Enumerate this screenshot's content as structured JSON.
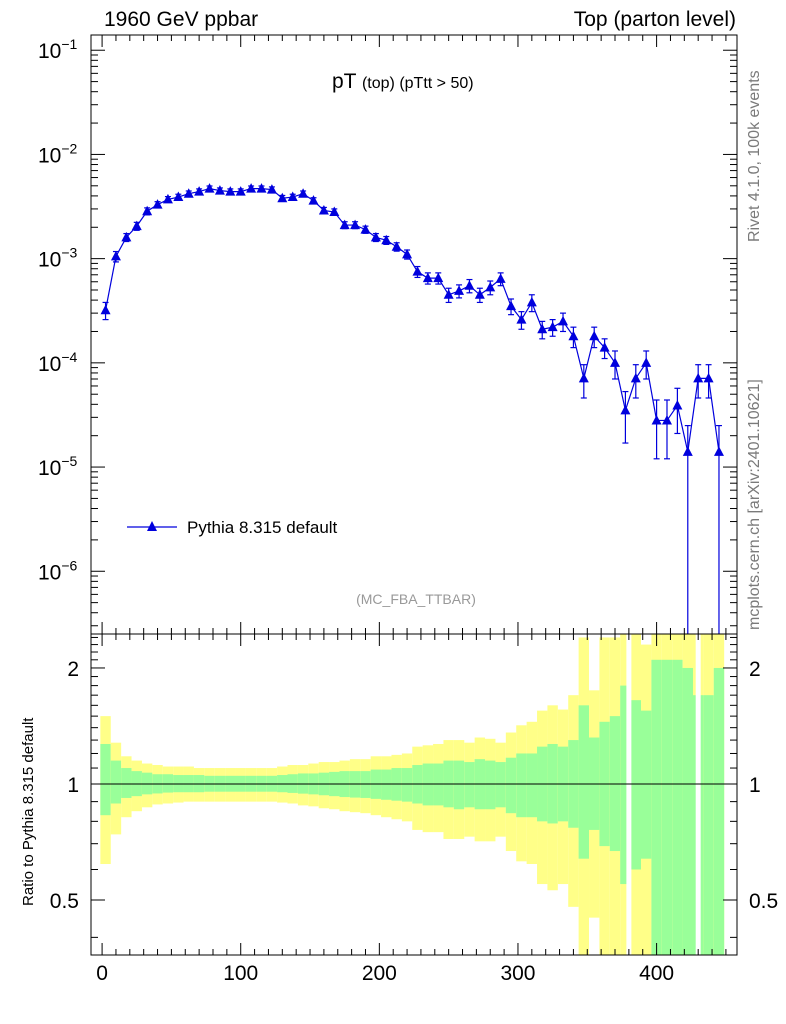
{
  "header": {
    "left": "1960 GeV ppbar",
    "right": "Top (parton level)"
  },
  "side_labels": {
    "rivet": "Rivet 4.1.0,  100k events",
    "site": "mcplots.cern.ch [arXiv:2401.10621]"
  },
  "colors": {
    "series": "#0000dd",
    "band_inner": "#99ff99",
    "band_outer": "#ffff88"
  },
  "chart_data": [
    {
      "type": "scatter",
      "title_main": "pT",
      "title_sub": "(top)",
      "title_cut": "(pTtt > 50)",
      "analysis_label": "(MC_FBA_TTBAR)",
      "yscale": "log",
      "xlim": [
        -8,
        458
      ],
      "ylim": [
        2.5e-07,
        0.14
      ],
      "yticks": [
        {
          "value": 1e-06,
          "base": "10",
          "exp": "−6"
        },
        {
          "value": 1e-05,
          "base": "10",
          "exp": "−5"
        },
        {
          "value": 0.0001,
          "base": "10",
          "exp": "−4"
        },
        {
          "value": 0.001,
          "base": "10",
          "exp": "−3"
        },
        {
          "value": 0.01,
          "base": "10",
          "exp": "−2"
        },
        {
          "value": 0.1,
          "base": "10",
          "exp": "−1"
        }
      ],
      "legend": {
        "position": "bottom-left",
        "label": "Pythia 8.315 default"
      },
      "series": [
        {
          "name": "Pythia 8.315 default",
          "x": [
            2.5,
            10,
            17.5,
            25,
            32.5,
            40,
            47.5,
            55,
            62.5,
            70,
            77.5,
            85,
            92.5,
            100,
            107.5,
            115,
            122.5,
            130,
            137.5,
            145,
            152.5,
            160,
            167.5,
            175,
            182.5,
            190,
            197.5,
            205,
            212.5,
            220,
            227.5,
            235,
            242.5,
            250,
            257.5,
            265,
            272.5,
            280,
            287.5,
            295,
            302.5,
            310,
            317.5,
            325,
            332.5,
            340,
            347.5,
            355,
            362.5,
            370,
            377.5,
            385,
            392.5,
            400,
            407.5,
            415,
            422.5,
            430,
            437.5,
            445
          ],
          "y": [
            0.00032,
            0.00105,
            0.0016,
            0.00205,
            0.00285,
            0.0033,
            0.0037,
            0.0039,
            0.0042,
            0.0044,
            0.0047,
            0.0045,
            0.0044,
            0.0044,
            0.0047,
            0.0047,
            0.0046,
            0.0038,
            0.0039,
            0.0042,
            0.0036,
            0.0029,
            0.0028,
            0.0021,
            0.0021,
            0.0019,
            0.0016,
            0.0015,
            0.0013,
            0.0011,
            0.00075,
            0.00065,
            0.00065,
            0.00045,
            0.00049,
            0.00055,
            0.00045,
            0.00053,
            0.00064,
            0.00035,
            0.00026,
            0.00038,
            0.00021,
            0.00022,
            0.00025,
            0.00018,
            7.1e-05,
            0.00018,
            0.00014,
            0.0001,
            3.5e-05,
            7.1e-05,
            0.0001,
            2.8e-05,
            2.8e-05,
            3.9e-05,
            1.4e-05,
            7.1e-05,
            7.1e-05,
            1.4e-05
          ],
          "err_up": [
            6e-05,
            0.00012,
            0.00014,
            0.00018,
            0.00022,
            0.00022,
            0.00024,
            0.00025,
            0.00026,
            0.00027,
            0.00028,
            0.00027,
            0.00027,
            0.00027,
            0.00028,
            0.00028,
            0.00028,
            0.00024,
            0.00025,
            0.00026,
            0.00024,
            0.0002,
            0.0002,
            0.00016,
            0.00016,
            0.00015,
            0.00014,
            0.00013,
            0.00012,
            0.00011,
            9e-05,
            8e-05,
            8e-05,
            7e-05,
            7e-05,
            8e-05,
            7e-05,
            8e-05,
            9e-05,
            6e-05,
            5e-05,
            7e-05,
            4e-05,
            4e-05,
            5e-05,
            4e-05,
            2.5e-05,
            4e-05,
            3e-05,
            3e-05,
            1.8e-05,
            2.5e-05,
            3e-05,
            1.6e-05,
            1.6e-05,
            1.8e-05,
            1.1e-05,
            2.5e-05,
            2.5e-05,
            1.1e-05
          ],
          "err_down": [
            6e-05,
            0.00012,
            0.00014,
            0.00018,
            0.00022,
            0.00022,
            0.00024,
            0.00025,
            0.00026,
            0.00027,
            0.00028,
            0.00027,
            0.00027,
            0.00027,
            0.00028,
            0.00028,
            0.00028,
            0.00024,
            0.00025,
            0.00026,
            0.00024,
            0.0002,
            0.0002,
            0.00016,
            0.00016,
            0.00015,
            0.00014,
            0.00013,
            0.00012,
            0.00011,
            9e-05,
            8e-05,
            8e-05,
            7e-05,
            7e-05,
            8e-05,
            7e-05,
            8e-05,
            9e-05,
            6e-05,
            5e-05,
            7e-05,
            4e-05,
            4e-05,
            5e-05,
            4e-05,
            2.5e-05,
            4e-05,
            3e-05,
            3e-05,
            1.8e-05,
            2.5e-05,
            3e-05,
            1.6e-05,
            1.6e-05,
            1.8e-05,
            1.4e-05,
            2.5e-05,
            2.5e-05,
            1.4e-05
          ]
        }
      ]
    },
    {
      "type": "area",
      "ylabel": "Ratio to Pythia 8.315 default",
      "yscale": "log",
      "xlim": [
        -8,
        458
      ],
      "ylim": [
        0.36,
        2.45
      ],
      "xticks": [
        0,
        100,
        200,
        300,
        400
      ],
      "yticks": [
        0.5,
        1,
        2
      ],
      "reference_line": 1,
      "bin_width": 7.5,
      "bands": {
        "x": [
          2.5,
          10,
          17.5,
          25,
          32.5,
          40,
          47.5,
          55,
          62.5,
          70,
          77.5,
          85,
          92.5,
          100,
          107.5,
          115,
          122.5,
          130,
          137.5,
          145,
          152.5,
          160,
          167.5,
          175,
          182.5,
          190,
          197.5,
          205,
          212.5,
          220,
          227.5,
          235,
          242.5,
          250,
          257.5,
          265,
          272.5,
          280,
          287.5,
          295,
          302.5,
          310,
          317.5,
          325,
          332.5,
          340,
          347.5,
          355,
          362.5,
          370,
          377.5,
          385,
          392.5,
          400,
          407.5,
          415,
          422.5,
          430,
          437.5,
          445
        ],
        "inner_up": [
          1.27,
          1.15,
          1.1,
          1.08,
          1.07,
          1.06,
          1.06,
          1.055,
          1.055,
          1.055,
          1.05,
          1.05,
          1.05,
          1.05,
          1.05,
          1.05,
          1.05,
          1.055,
          1.06,
          1.065,
          1.065,
          1.07,
          1.075,
          1.08,
          1.08,
          1.08,
          1.09,
          1.09,
          1.1,
          1.1,
          1.12,
          1.13,
          1.13,
          1.15,
          1.15,
          1.14,
          1.16,
          1.15,
          1.14,
          1.17,
          1.2,
          1.2,
          1.25,
          1.27,
          1.25,
          1.3,
          1.6,
          1.32,
          1.45,
          1.5,
          1.8,
          1.65,
          1.55,
          2.1,
          2.1,
          2.1,
          2.0,
          1.7,
          1.7,
          2.0
        ],
        "inner_down": [
          0.83,
          0.89,
          0.92,
          0.93,
          0.94,
          0.945,
          0.95,
          0.952,
          0.952,
          0.952,
          0.955,
          0.955,
          0.955,
          0.955,
          0.955,
          0.955,
          0.955,
          0.952,
          0.948,
          0.944,
          0.94,
          0.935,
          0.93,
          0.925,
          0.922,
          0.92,
          0.915,
          0.91,
          0.905,
          0.9,
          0.89,
          0.88,
          0.88,
          0.87,
          0.86,
          0.87,
          0.86,
          0.86,
          0.87,
          0.84,
          0.82,
          0.82,
          0.8,
          0.79,
          0.8,
          0.77,
          0.64,
          0.76,
          0.69,
          0.67,
          0.55,
          0.6,
          0.64,
          0.36,
          0.36,
          0.36,
          0.36,
          0.36,
          0.36,
          0.36
        ],
        "outer_up": [
          1.5,
          1.28,
          1.18,
          1.15,
          1.13,
          1.12,
          1.11,
          1.11,
          1.11,
          1.1,
          1.1,
          1.1,
          1.1,
          1.1,
          1.1,
          1.1,
          1.1,
          1.11,
          1.12,
          1.12,
          1.13,
          1.14,
          1.14,
          1.15,
          1.16,
          1.16,
          1.18,
          1.18,
          1.19,
          1.2,
          1.25,
          1.26,
          1.27,
          1.3,
          1.3,
          1.28,
          1.32,
          1.31,
          1.28,
          1.36,
          1.42,
          1.45,
          1.55,
          1.6,
          1.56,
          1.7,
          2.4,
          1.75,
          2.4,
          2.4,
          2.45,
          2.45,
          2.3,
          2.45,
          2.45,
          2.45,
          2.45,
          2.45,
          2.45,
          2.45
        ],
        "outer_down": [
          0.62,
          0.74,
          0.82,
          0.85,
          0.87,
          0.885,
          0.89,
          0.895,
          0.9,
          0.9,
          0.9,
          0.9,
          0.9,
          0.9,
          0.9,
          0.9,
          0.9,
          0.895,
          0.89,
          0.88,
          0.875,
          0.865,
          0.86,
          0.85,
          0.845,
          0.84,
          0.83,
          0.82,
          0.81,
          0.8,
          0.76,
          0.75,
          0.75,
          0.72,
          0.72,
          0.73,
          0.71,
          0.71,
          0.73,
          0.67,
          0.63,
          0.62,
          0.55,
          0.53,
          0.55,
          0.48,
          0.36,
          0.45,
          0.36,
          0.36,
          0.36,
          0.36,
          0.36,
          0.36,
          0.36,
          0.36,
          0.36,
          0.36,
          0.36,
          0.36
        ]
      },
      "gaps_x": [
        380,
        430
      ]
    }
  ]
}
